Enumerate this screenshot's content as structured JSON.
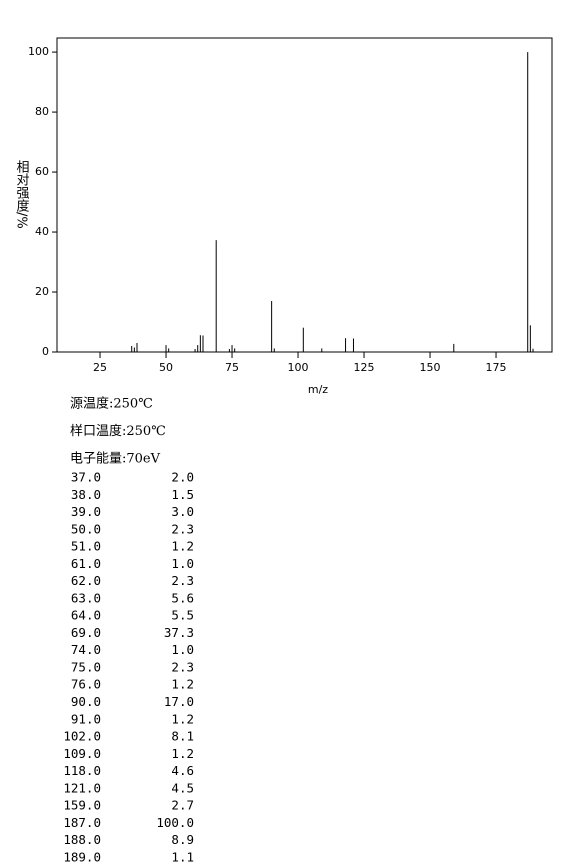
{
  "chart_data": {
    "type": "stick",
    "ylabel": "相对强度/%",
    "xlabel": "m/z",
    "x": [
      37,
      38,
      39,
      50,
      51,
      61,
      62,
      63,
      64,
      69,
      74,
      75,
      76,
      90,
      91,
      102,
      109,
      118,
      121,
      159,
      187,
      188,
      189
    ],
    "values": [
      2.0,
      1.5,
      3.0,
      2.3,
      1.2,
      1.0,
      2.3,
      5.6,
      5.5,
      37.3,
      1.0,
      2.3,
      1.2,
      17.0,
      1.2,
      8.1,
      1.2,
      4.6,
      4.5,
      2.7,
      100.0,
      8.9,
      1.1
    ],
    "color": "#000000",
    "xlim": [
      8.7,
      196.2
    ],
    "xticks": [
      25,
      50,
      75,
      100,
      125,
      150,
      175
    ],
    "ylim": [
      0,
      104.7
    ],
    "yticks": [
      0,
      20,
      40,
      60,
      80,
      100
    ]
  },
  "info": [
    "源温度:250℃",
    "样口温度:250℃",
    "电子能量:70eV"
  ],
  "table": {
    "rows": [
      [
        "37.0",
        "2.0"
      ],
      [
        "38.0",
        "1.5"
      ],
      [
        "39.0",
        "3.0"
      ],
      [
        "50.0",
        "2.3"
      ],
      [
        "51.0",
        "1.2"
      ],
      [
        "61.0",
        "1.0"
      ],
      [
        "62.0",
        "2.3"
      ],
      [
        "63.0",
        "5.6"
      ],
      [
        "64.0",
        "5.5"
      ],
      [
        "69.0",
        "37.3"
      ],
      [
        "74.0",
        "1.0"
      ],
      [
        "75.0",
        "2.3"
      ],
      [
        "76.0",
        "1.2"
      ],
      [
        "90.0",
        "17.0"
      ],
      [
        "91.0",
        "1.2"
      ],
      [
        "102.0",
        "8.1"
      ],
      [
        "109.0",
        "1.2"
      ],
      [
        "118.0",
        "4.6"
      ],
      [
        "121.0",
        "4.5"
      ],
      [
        "159.0",
        "2.7"
      ],
      [
        "187.0",
        "100.0"
      ],
      [
        "188.0",
        "8.9"
      ],
      [
        "189.0",
        "1.1"
      ]
    ]
  }
}
